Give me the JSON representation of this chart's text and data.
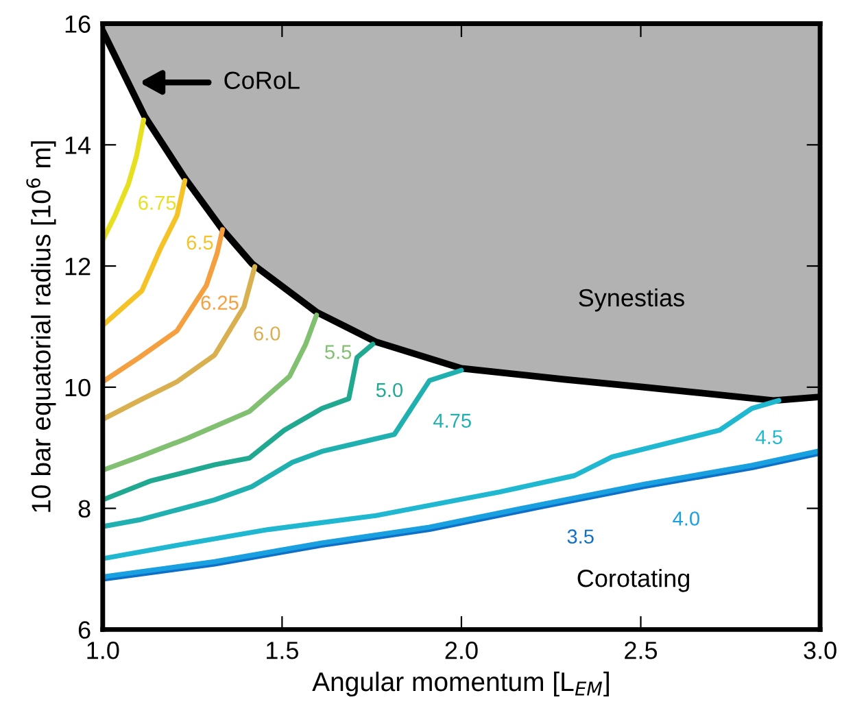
{
  "chart_data": {
    "type": "line",
    "xlabel": "Angular momentum [L$_{EM}$]",
    "ylabel": "10 bar equatorial radius [10$^{6}$ m]",
    "xlim": [
      1,
      3
    ],
    "xticks": [
      {
        "value": 1,
        "label": "1.0"
      },
      {
        "value": 1.5,
        "label": "1.5"
      },
      {
        "value": 2,
        "label": "2.0"
      },
      {
        "value": 2.5,
        "label": "2.5"
      },
      {
        "value": 3,
        "label": "3.0"
      }
    ],
    "ylim": [
      6,
      16
    ],
    "yticks": [
      6,
      8,
      10,
      12,
      14,
      16
    ],
    "grid": false,
    "legend": false,
    "marker": "none",
    "line_style": "solid",
    "series": [
      {
        "type": "line",
        "color": "#000000",
        "x": [
          1.0,
          1.117,
          1.229,
          1.334,
          1.416,
          1.596,
          1.761,
          2.0,
          2.285,
          2.51,
          2.87,
          3.0
        ],
        "values": [
          15.88,
          14.47,
          13.45,
          12.6,
          12.04,
          11.24,
          10.75,
          10.31,
          10.13,
          10.0,
          9.78,
          9.84
        ],
        "lower": [
          15.88,
          14.47,
          13.45,
          12.6,
          12.04,
          11.24,
          10.75,
          10.31,
          10.13,
          10.0,
          9.78,
          9.84
        ],
        "upper": [
          16,
          16,
          16,
          16,
          16,
          16,
          16,
          16,
          16,
          16,
          16,
          16
        ]
      },
      {
        "name": "6.75",
        "color": "#e6e020",
        "x": [
          1.0,
          1.034,
          1.072,
          1.094,
          1.114
        ],
        "values": [
          12.43,
          12.83,
          13.36,
          13.81,
          14.41
        ]
      },
      {
        "name": "6.5",
        "color": "#f5c228",
        "x": [
          1.0,
          1.109,
          1.162,
          1.207,
          1.229
        ],
        "values": [
          11.02,
          11.59,
          12.3,
          12.83,
          13.41
        ]
      },
      {
        "name": "6.25",
        "color": "#f5a040",
        "x": [
          1.0,
          1.102,
          1.207,
          1.289,
          1.319,
          1.334
        ],
        "values": [
          10.09,
          10.49,
          10.93,
          11.68,
          12.21,
          12.6
        ]
      },
      {
        "name": "6.0",
        "color": "#d8b050",
        "x": [
          1.0,
          1.102,
          1.207,
          1.312,
          1.394,
          1.424
        ],
        "values": [
          9.47,
          9.78,
          10.09,
          10.53,
          11.33,
          11.99
        ]
      },
      {
        "name": "5.5",
        "color": "#80c070",
        "x": [
          1.0,
          1.102,
          1.237,
          1.409,
          1.521,
          1.566,
          1.596
        ],
        "values": [
          8.63,
          8.85,
          9.16,
          9.6,
          10.18,
          10.71,
          11.19
        ]
      },
      {
        "name": "5.0",
        "color": "#20a890",
        "x": [
          1.0,
          1.132,
          1.312,
          1.409,
          1.506,
          1.611,
          1.686,
          1.709,
          1.753
        ],
        "values": [
          8.14,
          8.45,
          8.72,
          8.83,
          9.29,
          9.65,
          9.81,
          10.49,
          10.71
        ]
      },
      {
        "name": "4.75",
        "color": "#20b0b0",
        "x": [
          1.0,
          1.102,
          1.312,
          1.416,
          1.529,
          1.611,
          1.813,
          1.911,
          2.0
        ],
        "values": [
          7.7,
          7.81,
          8.14,
          8.36,
          8.76,
          8.94,
          9.22,
          10.11,
          10.28
        ]
      },
      {
        "name": "4.5",
        "color": "#20b8d0",
        "x": [
          1.0,
          1.207,
          1.461,
          1.761,
          2.106,
          2.315,
          2.42,
          2.72,
          2.81,
          2.885
        ],
        "values": [
          7.17,
          7.39,
          7.65,
          7.88,
          8.27,
          8.54,
          8.85,
          9.29,
          9.65,
          9.78
        ]
      },
      {
        "name": "3.5",
        "color": "#1070c8",
        "x": [
          1.0,
          1.312,
          1.611,
          1.911,
          2.21,
          2.51,
          2.81,
          3.0
        ],
        "values": [
          6.83,
          7.08,
          7.39,
          7.65,
          8.01,
          8.36,
          8.67,
          8.91
        ]
      },
      {
        "name": "4.0",
        "color": "#18a0e0",
        "x": [
          1.0,
          1.312,
          1.611,
          1.911,
          2.21,
          2.51,
          2.81,
          3.0
        ],
        "values": [
          6.87,
          7.12,
          7.43,
          7.69,
          8.05,
          8.4,
          8.71,
          8.95
        ]
      }
    ],
    "annotations": [
      "CoRoL",
      "Synestias",
      "Corotating"
    ]
  }
}
